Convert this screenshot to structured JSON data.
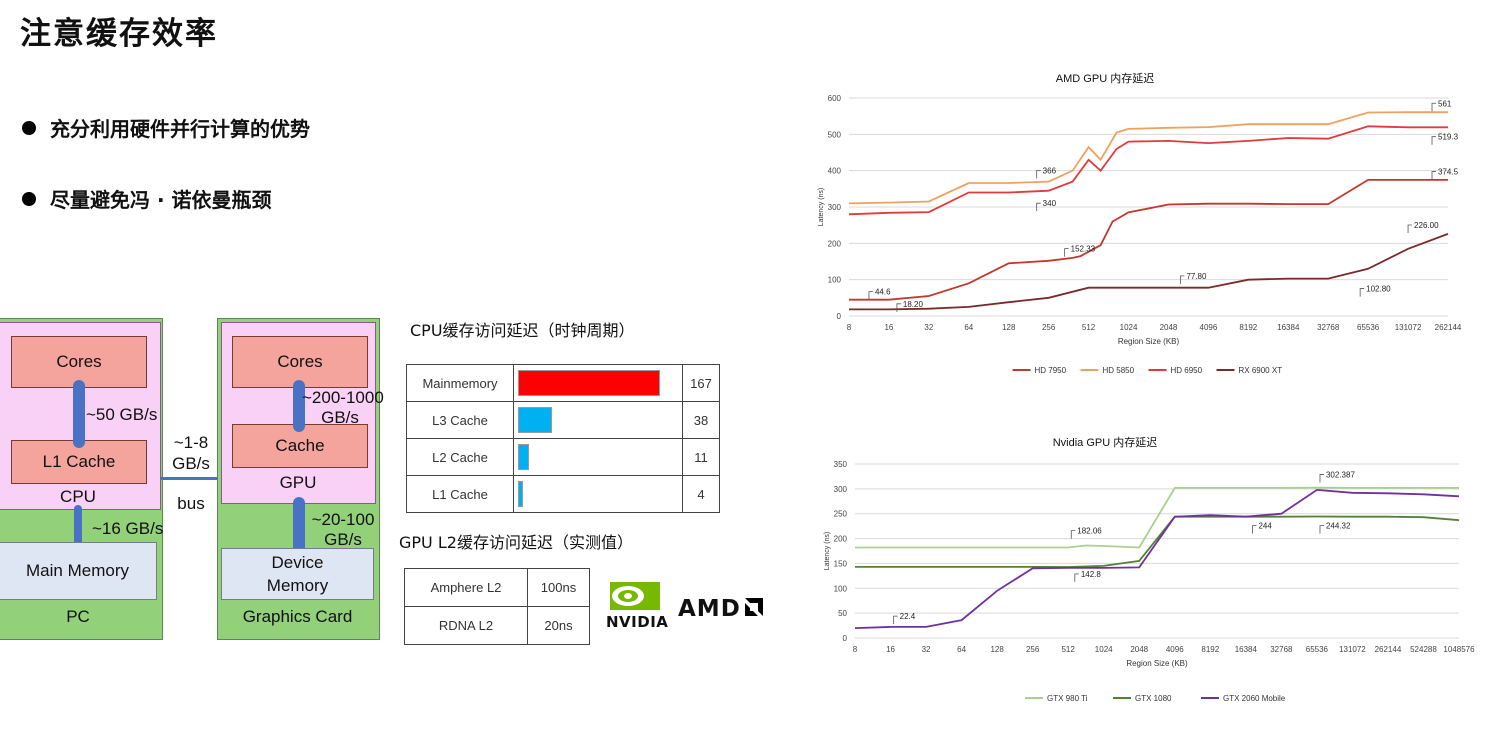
{
  "title": "注意缓存效率",
  "bullets": [
    "充分利用硬件并行计算的优势",
    "尽量避免冯 · 诺依曼瓶颈"
  ],
  "diagram": {
    "pc": {
      "label": "PC",
      "cpu": "CPU",
      "cores": "Cores",
      "l1": "L1 Cache",
      "bw_core": "~50 GB/s",
      "bw_mem": "~16 GB/s",
      "main_memory": "Main Memory"
    },
    "bus": {
      "bw": "~1-8\nGB/s",
      "label": "bus"
    },
    "gpu_card": {
      "label": "Graphics Card",
      "gpu": "GPU",
      "cores": "Cores",
      "cache": "Cache",
      "bw_core": "~200-1000\nGB/s",
      "bw_mem": "~20-100\nGB/s",
      "device_memory": "Device\nMemory"
    }
  },
  "cpu_table": {
    "title": "CPU缓存访问延迟（时钟周期）",
    "rows": [
      {
        "name": "Mainmemory",
        "value": "167",
        "num": 167,
        "color": "#ff0000"
      },
      {
        "name": "L3 Cache",
        "value": "38",
        "num": 38,
        "color": "#00b0f0"
      },
      {
        "name": "L2 Cache",
        "value": "11",
        "num": 11,
        "color": "#00b0f0"
      },
      {
        "name": "L1 Cache",
        "value": "4",
        "num": 4,
        "color": "#00b0f0"
      }
    ]
  },
  "gpu_table": {
    "title": "GPU L2缓存访问延迟（实测值）",
    "rows": [
      {
        "name": "Amphere L2",
        "value": "100ns"
      },
      {
        "name": "RDNA L2",
        "value": "20ns"
      }
    ]
  },
  "logos": {
    "nvidia": "NVIDIA",
    "amd": "AMD"
  },
  "chart_data": [
    {
      "type": "line",
      "title": "AMD GPU 内存延迟",
      "xlabel": "Region Size (KB)",
      "ylabel": "Latency (ns)",
      "ylim": [
        0,
        600
      ],
      "yticks": [
        "0",
        "100",
        "200",
        "300",
        "400",
        "500",
        "600"
      ],
      "categories": [
        "8",
        "16",
        "32",
        "64",
        "128",
        "256",
        "512",
        "1024",
        "2048",
        "4096",
        "8192",
        "16384",
        "32768",
        "65536",
        "131072",
        "262144"
      ],
      "annotations": [
        "44.6",
        "18.20",
        "152.33",
        "77.80",
        "102.80",
        "366",
        "340",
        "561",
        "519.3",
        "374.5",
        "226.00"
      ],
      "series": [
        {
          "name": "HD 7950",
          "color": "#c0392b",
          "points": [
            [
              0,
              45
            ],
            [
              1,
              45
            ],
            [
              2,
              55
            ],
            [
              3,
              90
            ],
            [
              4,
              145
            ],
            [
              5,
              152
            ],
            [
              5.6,
              160
            ],
            [
              5.8,
              165
            ],
            [
              6.3,
              195
            ],
            [
              6.6,
              260
            ],
            [
              7,
              285
            ],
            [
              8,
              307
            ],
            [
              9,
              309
            ],
            [
              10,
              309
            ],
            [
              11,
              308
            ],
            [
              12,
              308
            ],
            [
              13,
              374.5
            ],
            [
              14,
              374.5
            ],
            [
              15,
              374.5
            ]
          ]
        },
        {
          "name": "HD 5850",
          "color": "#f0a060",
          "points": [
            [
              0,
              310
            ],
            [
              1,
              312
            ],
            [
              2,
              315
            ],
            [
              3,
              366
            ],
            [
              4,
              366
            ],
            [
              5,
              370
            ],
            [
              5.6,
              400
            ],
            [
              6,
              465
            ],
            [
              6.3,
              430
            ],
            [
              6.7,
              505
            ],
            [
              7,
              515
            ],
            [
              8,
              518
            ],
            [
              9,
              520
            ],
            [
              10,
              528
            ],
            [
              11,
              528
            ],
            [
              12,
              528
            ],
            [
              13,
              560
            ],
            [
              14,
              561
            ],
            [
              15,
              561
            ]
          ]
        },
        {
          "name": "HD 6950",
          "color": "#e03a3a",
          "points": [
            [
              0,
              280
            ],
            [
              1,
              284
            ],
            [
              2,
              286
            ],
            [
              3,
              340
            ],
            [
              4,
              340
            ],
            [
              5,
              345
            ],
            [
              5.6,
              370
            ],
            [
              6,
              430
            ],
            [
              6.3,
              400
            ],
            [
              6.7,
              460
            ],
            [
              7,
              480
            ],
            [
              8,
              482
            ],
            [
              9,
              476
            ],
            [
              10,
              482
            ],
            [
              11,
              490
            ],
            [
              12,
              488
            ],
            [
              13,
              522
            ],
            [
              14,
              519.3
            ],
            [
              15,
              519.3
            ]
          ]
        },
        {
          "name": "RX 6900 XT",
          "color": "#7a2a2a",
          "points": [
            [
              0,
              18.2
            ],
            [
              1,
              18.2
            ],
            [
              2,
              20
            ],
            [
              3,
              25
            ],
            [
              4,
              38
            ],
            [
              5,
              50
            ],
            [
              6,
              77.8
            ],
            [
              7,
              77.8
            ],
            [
              8,
              77.8
            ],
            [
              9,
              78
            ],
            [
              10,
              100
            ],
            [
              11,
              102.8
            ],
            [
              12,
              102.8
            ],
            [
              13,
              130
            ],
            [
              14,
              185
            ],
            [
              15,
              226
            ]
          ]
        }
      ]
    },
    {
      "type": "line",
      "title": "Nvidia GPU 内存延迟",
      "xlabel": "Region Size (KB)",
      "ylabel": "Latency (ns)",
      "ylim": [
        0,
        350
      ],
      "yticks": [
        "0",
        "50",
        "100",
        "150",
        "200",
        "250",
        "300",
        "350"
      ],
      "categories": [
        "8",
        "16",
        "32",
        "64",
        "128",
        "256",
        "512",
        "1024",
        "2048",
        "4096",
        "8192",
        "16384",
        "32768",
        "65536",
        "131072",
        "262144",
        "524288",
        "1048576"
      ],
      "annotations": [
        "182.06",
        "142.8",
        "22.4",
        "244",
        "302.387",
        "244.32"
      ],
      "series": [
        {
          "name": "GTX 980 Ti",
          "color": "#a9d18e",
          "points": [
            [
              0,
              182
            ],
            [
              1,
              182
            ],
            [
              2,
              182
            ],
            [
              3,
              182
            ],
            [
              4,
              182
            ],
            [
              5,
              182
            ],
            [
              6,
              182.06
            ],
            [
              6.5,
              186
            ],
            [
              7,
              185
            ],
            [
              8,
              182
            ],
            [
              9,
              302
            ],
            [
              10,
              302
            ],
            [
              11,
              302
            ],
            [
              12,
              302
            ],
            [
              13,
              302.387
            ],
            [
              14,
              302
            ],
            [
              15,
              302
            ],
            [
              16,
              302
            ],
            [
              17,
              302
            ]
          ]
        },
        {
          "name": "GTX 1080",
          "color": "#548235",
          "points": [
            [
              0,
              143
            ],
            [
              1,
              143
            ],
            [
              2,
              143
            ],
            [
              3,
              143
            ],
            [
              4,
              143
            ],
            [
              5,
              143
            ],
            [
              6,
              142.8
            ],
            [
              7,
              145
            ],
            [
              8,
              155
            ],
            [
              9,
              244
            ],
            [
              10,
              244
            ],
            [
              11,
              244
            ],
            [
              12,
              244
            ],
            [
              13,
              244.32
            ],
            [
              14,
              244
            ],
            [
              15,
              244
            ],
            [
              16,
              243
            ],
            [
              17,
              237
            ]
          ]
        },
        {
          "name": "GTX 2060 Mobile",
          "color": "#7030a0",
          "points": [
            [
              0,
              20
            ],
            [
              1,
              22.4
            ],
            [
              2,
              22.4
            ],
            [
              3,
              36
            ],
            [
              4,
              95
            ],
            [
              5,
              140
            ],
            [
              6,
              141
            ],
            [
              7,
              141
            ],
            [
              8,
              142
            ],
            [
              9,
              244
            ],
            [
              10,
              247
            ],
            [
              11,
              244
            ],
            [
              12,
              250
            ],
            [
              13,
              298
            ],
            [
              14,
              292
            ],
            [
              15,
              291
            ],
            [
              16,
              289
            ],
            [
              17,
              285
            ]
          ]
        }
      ]
    }
  ]
}
